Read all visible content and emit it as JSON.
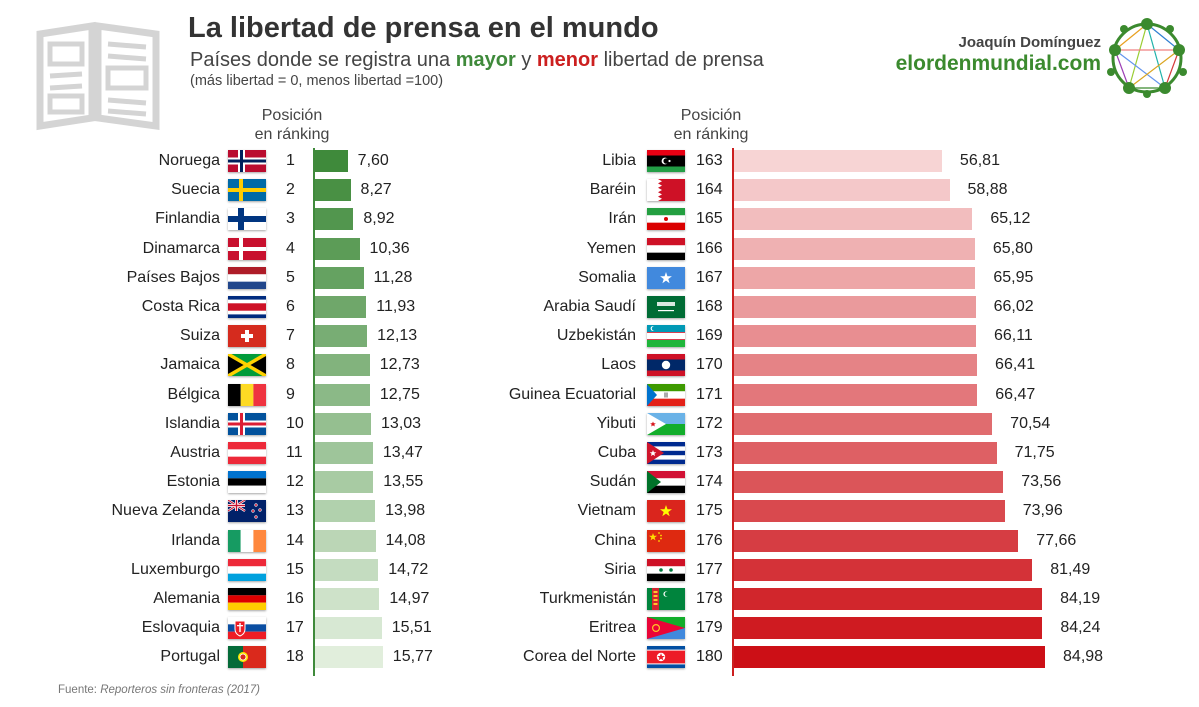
{
  "header": {
    "title": "La libertad de prensa en el mundo",
    "subtitle_pre": "Países donde se registra una",
    "subtitle_mayor": "mayor",
    "subtitle_mid": "y",
    "subtitle_menor": "menor",
    "subtitle_post": "libertad de prensa",
    "note": "(más libertad = 0, menos libertad =100)"
  },
  "branding": {
    "author": "Joaquín Domínguez",
    "site": "elordenmundial.com",
    "logo_icon": "globe-network-logo",
    "newspaper_icon": "newspaper-icon"
  },
  "columns": {
    "left_header": [
      "Posición",
      "en ránking"
    ],
    "right_header": [
      "Posición",
      "en ránking"
    ]
  },
  "source": {
    "label": "Fuente:",
    "name": "Reporteros sin fronteras (2017)"
  },
  "colors": {
    "green_dark": "#3f8a3b",
    "green_light": "#e1eedc",
    "red_light": "#f7d4d4",
    "red_dark": "#cc0f16",
    "accent_line_green": "#3f8a3b",
    "accent_line_red": "#cc1f1f"
  },
  "chart_data": [
    {
      "type": "bar",
      "orientation": "horizontal",
      "title": "Mayor libertad de prensa",
      "value_decimal_separator": ",",
      "rows": [
        {
          "country": "Noruega",
          "rank": 1,
          "value": 7.6,
          "label": "7,60",
          "flag": "norway"
        },
        {
          "country": "Suecia",
          "rank": 2,
          "value": 8.27,
          "label": "8,27",
          "flag": "sweden"
        },
        {
          "country": "Finlandia",
          "rank": 3,
          "value": 8.92,
          "label": "8,92",
          "flag": "finland"
        },
        {
          "country": "Dinamarca",
          "rank": 4,
          "value": 10.36,
          "label": "10,36",
          "flag": "denmark"
        },
        {
          "country": "Países Bajos",
          "rank": 5,
          "value": 11.28,
          "label": "11,28",
          "flag": "netherlands"
        },
        {
          "country": "Costa Rica",
          "rank": 6,
          "value": 11.93,
          "label": "11,93",
          "flag": "costa-rica"
        },
        {
          "country": "Suiza",
          "rank": 7,
          "value": 12.13,
          "label": "12,13",
          "flag": "switzerland"
        },
        {
          "country": "Jamaica",
          "rank": 8,
          "value": 12.73,
          "label": "12,73",
          "flag": "jamaica"
        },
        {
          "country": "Bélgica",
          "rank": 9,
          "value": 12.75,
          "label": "12,75",
          "flag": "belgium"
        },
        {
          "country": "Islandia",
          "rank": 10,
          "value": 13.03,
          "label": "13,03",
          "flag": "iceland"
        },
        {
          "country": "Austria",
          "rank": 11,
          "value": 13.47,
          "label": "13,47",
          "flag": "austria"
        },
        {
          "country": "Estonia",
          "rank": 12,
          "value": 13.55,
          "label": "13,55",
          "flag": "estonia"
        },
        {
          "country": "Nueva Zelanda",
          "rank": 13,
          "value": 13.98,
          "label": "13,98",
          "flag": "new-zealand"
        },
        {
          "country": "Irlanda",
          "rank": 14,
          "value": 14.08,
          "label": "14,08",
          "flag": "ireland"
        },
        {
          "country": "Luxemburgo",
          "rank": 15,
          "value": 14.72,
          "label": "14,72",
          "flag": "luxembourg"
        },
        {
          "country": "Alemania",
          "rank": 16,
          "value": 14.97,
          "label": "14,97",
          "flag": "germany"
        },
        {
          "country": "Eslovaquia",
          "rank": 17,
          "value": 15.51,
          "label": "15,51",
          "flag": "slovakia"
        },
        {
          "country": "Portugal",
          "rank": 18,
          "value": 15.77,
          "label": "15,77",
          "flag": "portugal"
        }
      ]
    },
    {
      "type": "bar",
      "orientation": "horizontal",
      "title": "Menor libertad de prensa",
      "value_decimal_separator": ",",
      "rows": [
        {
          "country": "Libia",
          "rank": 163,
          "value": 56.81,
          "label": "56,81",
          "flag": "libya"
        },
        {
          "country": "Baréin",
          "rank": 164,
          "value": 58.88,
          "label": "58,88",
          "flag": "bahrain"
        },
        {
          "country": "Irán",
          "rank": 165,
          "value": 65.12,
          "label": "65,12",
          "flag": "iran"
        },
        {
          "country": "Yemen",
          "rank": 166,
          "value": 65.8,
          "label": "65,80",
          "flag": "yemen"
        },
        {
          "country": "Somalia",
          "rank": 167,
          "value": 65.95,
          "label": "65,95",
          "flag": "somalia"
        },
        {
          "country": "Arabia Saudí",
          "rank": 168,
          "value": 66.02,
          "label": "66,02",
          "flag": "saudi-arabia"
        },
        {
          "country": "Uzbekistán",
          "rank": 169,
          "value": 66.11,
          "label": "66,11",
          "flag": "uzbekistan"
        },
        {
          "country": "Laos",
          "rank": 170,
          "value": 66.41,
          "label": "66,41",
          "flag": "laos"
        },
        {
          "country": "Guinea Ecuatorial",
          "rank": 171,
          "value": 66.47,
          "label": "66,47",
          "flag": "equatorial-guinea"
        },
        {
          "country": "Yibuti",
          "rank": 172,
          "value": 70.54,
          "label": "70,54",
          "flag": "djibouti"
        },
        {
          "country": "Cuba",
          "rank": 173,
          "value": 71.75,
          "label": "71,75",
          "flag": "cuba"
        },
        {
          "country": "Sudán",
          "rank": 174,
          "value": 73.56,
          "label": "73,56",
          "flag": "sudan"
        },
        {
          "country": "Vietnam",
          "rank": 175,
          "value": 73.96,
          "label": "73,96",
          "flag": "vietnam"
        },
        {
          "country": "China",
          "rank": 176,
          "value": 77.66,
          "label": "77,66",
          "flag": "china"
        },
        {
          "country": "Siria",
          "rank": 177,
          "value": 81.49,
          "label": "81,49",
          "flag": "syria"
        },
        {
          "country": "Turkmenistán",
          "rank": 178,
          "value": 84.19,
          "label": "84,19",
          "flag": "turkmenistan"
        },
        {
          "country": "Eritrea",
          "rank": 179,
          "value": 84.24,
          "label": "84,24",
          "flag": "eritrea"
        },
        {
          "country": "Corea del Norte",
          "rank": 180,
          "value": 84.98,
          "label": "84,98",
          "flag": "north-korea"
        }
      ]
    }
  ]
}
